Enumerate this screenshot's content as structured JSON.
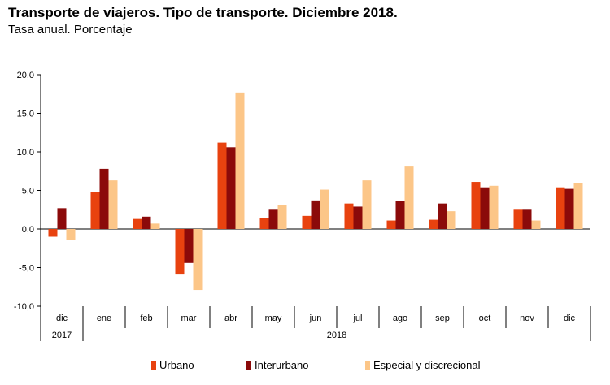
{
  "title": "Transporte de viajeros. Tipo de transporte. Diciembre 2018.",
  "subtitle": "Tasa anual. Porcentaje",
  "legend": {
    "urbano": "Urbano",
    "interurbano": "Interurbano",
    "especial": "Especial y discrecional"
  },
  "colors": {
    "urbano": "#e8420f",
    "interurbano": "#8b0a0a",
    "especial": "#fcc688"
  },
  "chart_data": {
    "type": "bar",
    "categories": [
      "dic",
      "ene",
      "feb",
      "mar",
      "abr",
      "may",
      "jun",
      "jul",
      "ago",
      "sep",
      "oct",
      "nov",
      "dic"
    ],
    "year_groups": [
      {
        "label": "2017",
        "span": 1
      },
      {
        "label": "2018",
        "span": 12
      }
    ],
    "series": [
      {
        "name": "Urbano",
        "values": [
          -1.0,
          4.8,
          1.3,
          -5.8,
          11.2,
          1.4,
          1.7,
          3.3,
          1.1,
          1.2,
          6.1,
          2.6,
          5.4
        ]
      },
      {
        "name": "Interurbano",
        "values": [
          2.7,
          7.8,
          1.6,
          -4.4,
          10.6,
          2.6,
          3.7,
          2.9,
          3.6,
          3.3,
          5.4,
          2.6,
          5.2
        ]
      },
      {
        "name": "Especial y discrecional",
        "values": [
          -1.4,
          6.3,
          0.7,
          -7.9,
          17.7,
          3.1,
          5.1,
          6.3,
          8.2,
          2.3,
          5.6,
          1.1,
          6.0
        ]
      }
    ],
    "yticks": [
      "20,0",
      "15,0",
      "10,0",
      "5,0",
      "0,0",
      "-5,0",
      "-10,0"
    ],
    "ylim": [
      -10,
      20
    ],
    "grid": false
  }
}
